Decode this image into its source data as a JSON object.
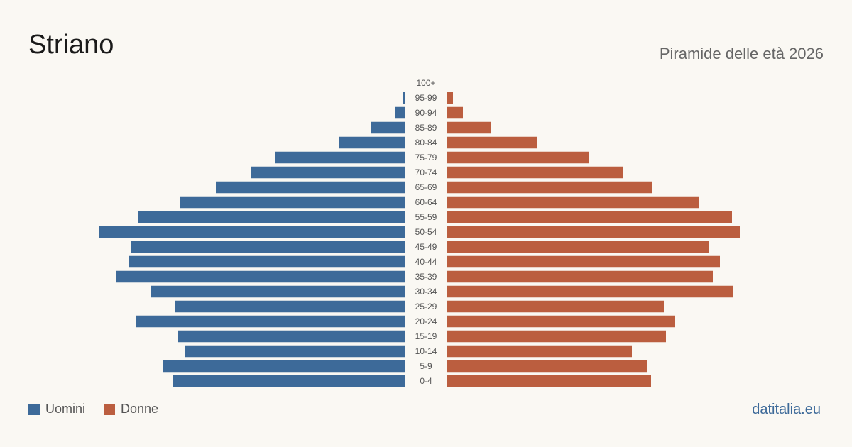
{
  "header": {
    "title": "Striano",
    "subtitle": "Piramide delle età 2026"
  },
  "legend": [
    {
      "label": "Uomini",
      "color": "#3d6a99"
    },
    {
      "label": "Donne",
      "color": "#bb5e3f"
    }
  ],
  "footer": {
    "site": "datitalia.eu"
  },
  "chart_data": {
    "type": "bar",
    "orientation": "horizontal-pyramid",
    "categories": [
      "0-4",
      "5-9",
      "10-14",
      "15-19",
      "20-24",
      "25-29",
      "30-34",
      "35-39",
      "40-44",
      "45-49",
      "50-54",
      "55-59",
      "60-64",
      "65-69",
      "70-74",
      "75-79",
      "80-84",
      "85-89",
      "90-94",
      "95-99",
      "100+"
    ],
    "series": [
      {
        "name": "Uomini",
        "color": "#3d6a99",
        "values": [
          327,
          341,
          310,
          320,
          378,
          323,
          357,
          407,
          389,
          385,
          430,
          375,
          316,
          266,
          217,
          182,
          93,
          48,
          13,
          2,
          0
        ]
      },
      {
        "name": "Donne",
        "color": "#bb5e3f",
        "values": [
          287,
          281,
          260,
          308,
          320,
          305,
          402,
          374,
          384,
          368,
          412,
          401,
          355,
          289,
          247,
          199,
          127,
          61,
          22,
          8,
          0
        ]
      }
    ],
    "xlim": [
      0,
      430
    ],
    "grid": false
  }
}
